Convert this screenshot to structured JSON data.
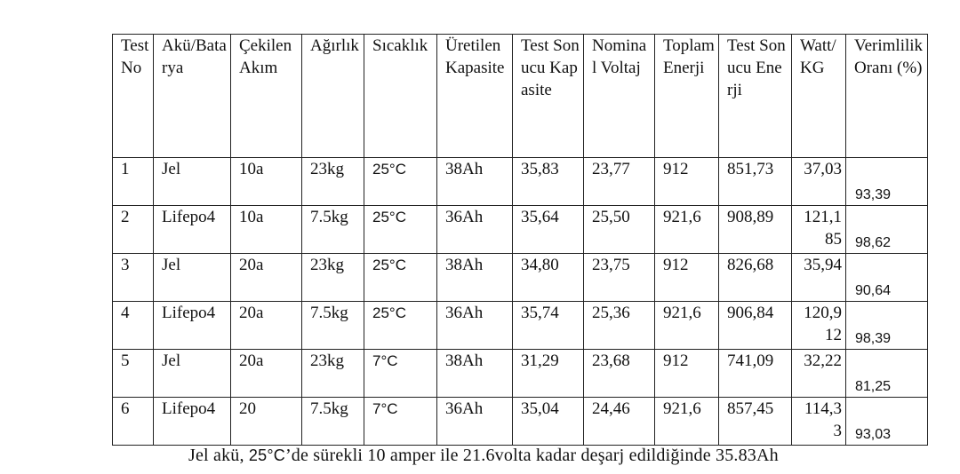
{
  "table": {
    "headers": [
      "Test No",
      "Akü/Batarya",
      "Çekilen Akım",
      "Ağırlık",
      "Sıcaklık",
      "Üretilen Kapasite",
      "Test Sonucu Kapasite",
      "Nominal Voltaj",
      "Toplam Enerji",
      "Test Sonucu Enerji",
      "Watt/KG",
      "Verimlilik Oranı (%)"
    ],
    "rows": [
      {
        "no": "1",
        "battery": "Jel",
        "current": "10a",
        "weight": "23kg",
        "temp": "25°C",
        "capacity": "38Ah",
        "test_capacity": "35,83",
        "voltage": "23,77",
        "energy": "912",
        "test_energy": "851,73",
        "watt_kg": "37,03",
        "efficiency": "93,39"
      },
      {
        "no": "2",
        "battery": "Lifepo4",
        "current": "10a",
        "weight": "7.5kg",
        "temp": "25°C",
        "capacity": "36Ah",
        "test_capacity": "35,64",
        "voltage": "25,50",
        "energy": "921,6",
        "test_energy": "908,89",
        "watt_kg": "121,185",
        "efficiency": "98,62"
      },
      {
        "no": "3",
        "battery": "Jel",
        "current": "20a",
        "weight": "23kg",
        "temp": "25°C",
        "capacity": "38Ah",
        "test_capacity": "34,80",
        "voltage": "23,75",
        "energy": "912",
        "test_energy": "826,68",
        "watt_kg": "35,94",
        "efficiency": "90,64"
      },
      {
        "no": "4",
        "battery": "Lifepo4",
        "current": "20a",
        "weight": "7.5kg",
        "temp": "25°C",
        "capacity": "36Ah",
        "test_capacity": "35,74",
        "voltage": "25,36",
        "energy": "921,6",
        "test_energy": "906,84",
        "watt_kg": "120,912",
        "efficiency": "98,39"
      },
      {
        "no": "5",
        "battery": "Jel",
        "current": "20a",
        "weight": "23kg",
        "temp": "7°C",
        "capacity": "38Ah",
        "test_capacity": "31,29",
        "voltage": "23,68",
        "energy": "912",
        "test_energy": "741,09",
        "watt_kg": "32,22",
        "efficiency": "81,25"
      },
      {
        "no": "6",
        "battery": "Lifepo4",
        "current": "20",
        "weight": "7.5kg",
        "temp": "7°C",
        "capacity": "36Ah",
        "test_capacity": "35,04",
        "voltage": "24,46",
        "energy": "921,6",
        "test_energy": "857,45",
        "watt_kg": "114,33",
        "efficiency": "93,03"
      }
    ]
  },
  "caption": {
    "part1": "Jel akü, ",
    "temp": "25°C",
    "part2": "’de sürekli 10 amper ile 21.6volta kadar deşarj edildiğinde 35.83Ah"
  }
}
